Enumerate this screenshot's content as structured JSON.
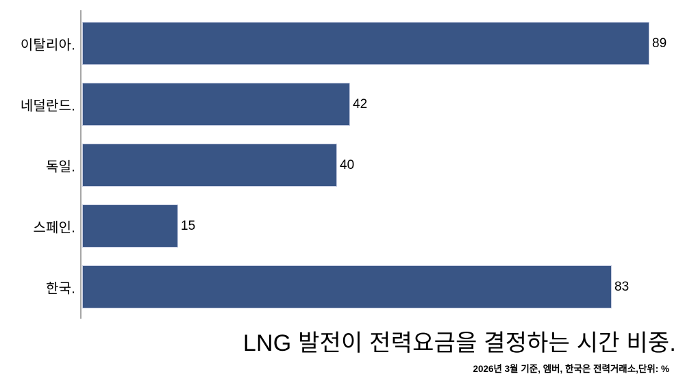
{
  "chart_data": {
    "type": "bar",
    "orientation": "horizontal",
    "categories": [
      "이탈리아.",
      "네덜란드.",
      "독일.",
      "스페인.",
      "한국."
    ],
    "values": [
      89,
      42,
      40,
      15,
      83
    ],
    "title": "LNG 발전이 전력요금을 결정하는 시간 비중.",
    "source_note": "2026년 3월 기준, 엠버, 한국은 전력거래소,단위: %",
    "xlabel": "",
    "ylabel": "",
    "xlim": [
      0,
      94
    ],
    "grid": false,
    "legend": false,
    "value_labels_shown": true,
    "bar_color": "#395585",
    "bar_border_color": "#c6cce1",
    "axis_line_color": "#a6a6a6",
    "text_color": "#000000"
  }
}
